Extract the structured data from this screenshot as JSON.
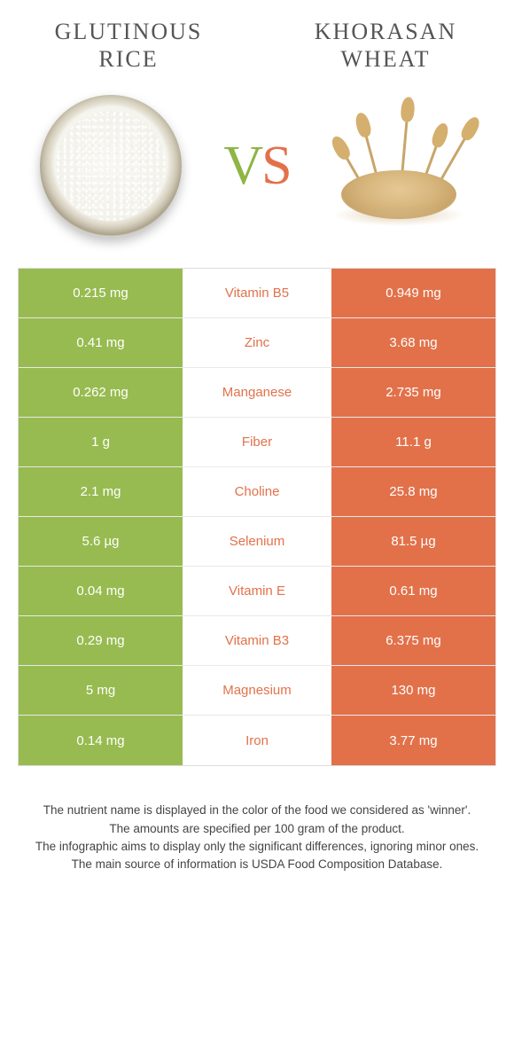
{
  "colors": {
    "left_bg": "#97bb50",
    "right_bg": "#e2714a",
    "cell_text": "#ffffff",
    "border": "#e8e8e8"
  },
  "header": {
    "left_title": "Glutinous rice",
    "right_title": "Khorasan wheat",
    "vs_v": "V",
    "vs_s": "S"
  },
  "rows": [
    {
      "left": "0.215 mg",
      "nutrient": "Vitamin B5",
      "right": "0.949 mg",
      "winner": "right"
    },
    {
      "left": "0.41 mg",
      "nutrient": "Zinc",
      "right": "3.68 mg",
      "winner": "right"
    },
    {
      "left": "0.262 mg",
      "nutrient": "Manganese",
      "right": "2.735 mg",
      "winner": "right"
    },
    {
      "left": "1 g",
      "nutrient": "Fiber",
      "right": "11.1 g",
      "winner": "right"
    },
    {
      "left": "2.1 mg",
      "nutrient": "Choline",
      "right": "25.8 mg",
      "winner": "right"
    },
    {
      "left": "5.6 µg",
      "nutrient": "Selenium",
      "right": "81.5 µg",
      "winner": "right"
    },
    {
      "left": "0.04 mg",
      "nutrient": "Vitamin E",
      "right": "0.61 mg",
      "winner": "right"
    },
    {
      "left": "0.29 mg",
      "nutrient": "Vitamin B3",
      "right": "6.375 mg",
      "winner": "right"
    },
    {
      "left": "5 mg",
      "nutrient": "Magnesium",
      "right": "130 mg",
      "winner": "right"
    },
    {
      "left": "0.14 mg",
      "nutrient": "Iron",
      "right": "3.77 mg",
      "winner": "right"
    }
  ],
  "footer": {
    "line1": "The nutrient name is displayed in the color of the food we considered as 'winner'.",
    "line2": "The amounts are specified per 100 gram of the product.",
    "line3": "The infographic aims to display only the significant differences, ignoring minor ones.",
    "line4": "The main source of information is USDA Food Composition Database."
  }
}
